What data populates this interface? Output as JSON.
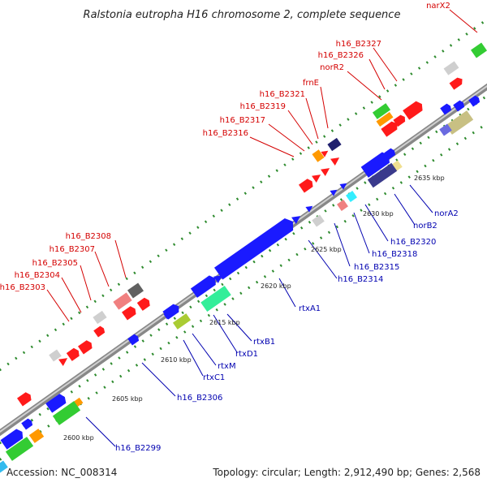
{
  "header": {
    "title": "Ralstonia eutropha H16 chromosome 2, complete sequence"
  },
  "footer": {
    "accession": "Accession: NC_008314",
    "summary": "Topology: circular; Length: 2,912,490 bp; Genes: 2,568"
  },
  "top_labels": [
    "narX2",
    "h16_B2327",
    "h16_B2326",
    "norR2",
    "frnE",
    "h16_B2321",
    "h16_B2319",
    "h16_B2317",
    "h16_B2316",
    "h16_B2308",
    "h16_B2307",
    "h16_B2305",
    "h16_B2304",
    "h16_B2303"
  ],
  "bottom_labels": [
    "norA2",
    "norB2",
    "h16_B2320",
    "h16_B2318",
    "h16_B2315",
    "h16_B2314",
    "rtxA1",
    "rtxB1",
    "rtxD1",
    "rtxM",
    "rtxC1",
    "h16_B2306",
    "h16_B2299"
  ],
  "ticks": [
    "2635 kbp",
    "2630 kbp",
    "2625 kbp",
    "2620 kbp",
    "2615 kbp",
    "2610 kbp",
    "2605 kbp",
    "2600 kbp"
  ],
  "colors": {
    "backbone": "#a6a6a6",
    "dots": "#2e8b2e",
    "red_label": "#d40000",
    "blue_label": "#0000b0"
  }
}
